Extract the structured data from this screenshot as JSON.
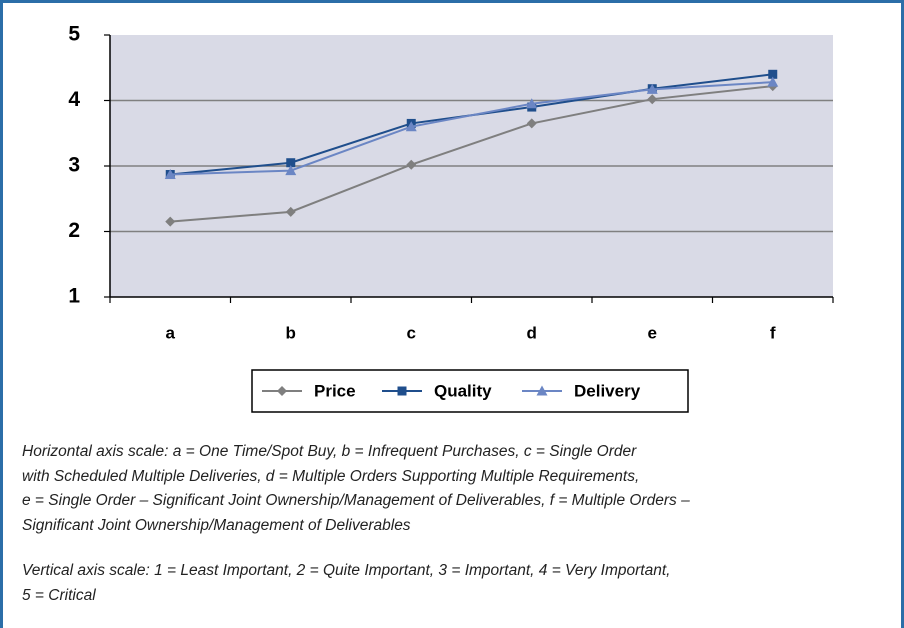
{
  "chart_data": {
    "type": "line",
    "categories": [
      "a",
      "b",
      "c",
      "d",
      "e",
      "f"
    ],
    "series": [
      {
        "name": "Price",
        "color": "#7f7f7f",
        "marker": "diamond",
        "values": [
          2.15,
          2.3,
          3.02,
          3.65,
          4.02,
          4.22
        ]
      },
      {
        "name": "Quality",
        "color": "#1f4e8c",
        "marker": "square",
        "values": [
          2.87,
          3.05,
          3.65,
          3.9,
          4.18,
          4.4
        ]
      },
      {
        "name": "Delivery",
        "color": "#6b86c4",
        "marker": "triangle",
        "values": [
          2.87,
          2.93,
          3.6,
          3.95,
          4.17,
          4.28
        ]
      }
    ],
    "ylim": [
      1,
      5
    ],
    "yticks": [
      1,
      2,
      3,
      4,
      5
    ],
    "grid": true,
    "legend": "bottom"
  },
  "notes": [
    [
      "Horizontal axis scale: a = One Time/Spot Buy, b = Infrequent Purchases, c = Single Order",
      "with Scheduled Multiple Deliveries, d = Multiple Orders Supporting Multiple Requirements,",
      "e = Single Order – Significant Joint Ownership/Management of Deliverables, f = Multiple Orders –",
      "Significant Joint Ownership/Management of Deliverables"
    ],
    [
      "Vertical axis scale: 1 = Least Important, 2 = Quite Important, 3 = Important, 4 = Very Important,",
      "5 = Critical"
    ]
  ]
}
